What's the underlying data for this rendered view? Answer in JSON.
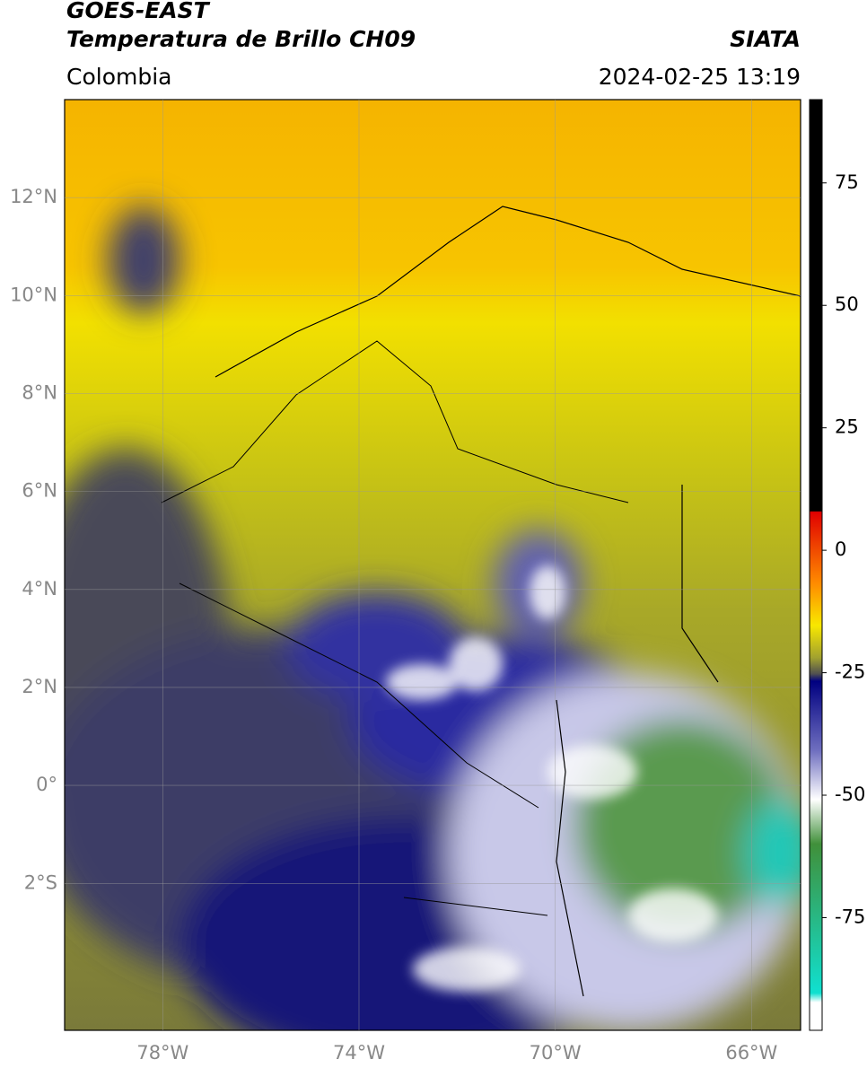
{
  "header": {
    "title": "GOES-EAST",
    "subtitle": "Temperatura de Brillo CH09",
    "region": "Colombia",
    "source": "SIATA",
    "datetime": "2024-02-25 13:19"
  },
  "map": {
    "xlim": [
      -80,
      -65
    ],
    "ylim": [
      -5,
      14
    ],
    "xticks": [
      {
        "value": -78,
        "label": "78°W"
      },
      {
        "value": -74,
        "label": "74°W"
      },
      {
        "value": -70,
        "label": "70°W"
      },
      {
        "value": -66,
        "label": "66°W"
      }
    ],
    "yticks": [
      {
        "value": 12,
        "label": "12°N"
      },
      {
        "value": 10,
        "label": "10°N"
      },
      {
        "value": 8,
        "label": "8°N"
      },
      {
        "value": 6,
        "label": "6°N"
      },
      {
        "value": 4,
        "label": "4°N"
      },
      {
        "value": 2,
        "label": "2°N"
      },
      {
        "value": 0,
        "label": "0°"
      },
      {
        "value": -2,
        "label": "2°S"
      }
    ],
    "grid": true
  },
  "colorbar": {
    "lim": [
      -98,
      92
    ],
    "ticks": [
      75,
      50,
      25,
      0,
      -25,
      -50,
      -75
    ]
  }
}
